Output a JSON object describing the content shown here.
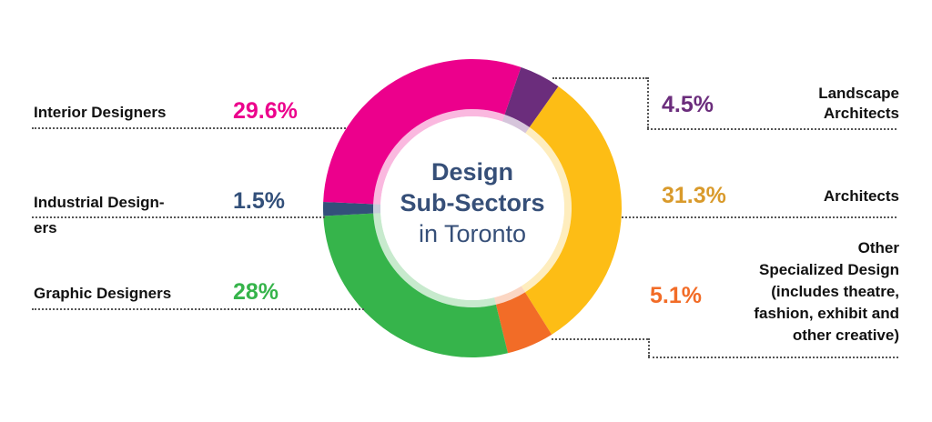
{
  "chart_data": {
    "type": "pie",
    "variant": "donut",
    "title": "Design Sub-Sectors in Toronto",
    "categories": [
      "Landscape Architects",
      "Architects",
      "Other Specialized Design (includes theatre, fashion, exhibit and other creative)",
      "Graphic Designers",
      "Industrial Designers",
      "Interior Designers"
    ],
    "values": [
      4.5,
      31.3,
      5.1,
      28,
      1.5,
      29.6
    ],
    "unit": "%",
    "colors": [
      "#6b2d7c",
      "#fdbd15",
      "#f26c27",
      "#36b44b",
      "#33507a",
      "#ec008c"
    ],
    "legend_position": "around"
  },
  "center": {
    "line1": "Design",
    "line2": "Sub-Sectors",
    "line3": "in Toronto"
  },
  "labels": {
    "interior": {
      "name": "Interior Designers",
      "pct": "29.6%",
      "color": "#ec008c"
    },
    "industrial": {
      "name_line1": "Industrial Design-",
      "name_line2": "ers",
      "pct": "1.5%",
      "color": "#33507a"
    },
    "graphic": {
      "name": "Graphic Designers",
      "pct": "28%",
      "color": "#36b44b"
    },
    "landscape": {
      "name_line1": "Landscape",
      "name_line2": "Architects",
      "pct": "4.5%",
      "color": "#6b2d7c"
    },
    "architects": {
      "name": "Architects",
      "pct": "31.3%",
      "color": "#d99a2b"
    },
    "other": {
      "name_line1": "Other",
      "name_line2": "Specialized Design",
      "name_line3": "(includes theatre,",
      "name_line4": "fashion, exhibit and",
      "name_line5": "other creative)",
      "pct": "5.1%",
      "color": "#f26c27"
    }
  }
}
